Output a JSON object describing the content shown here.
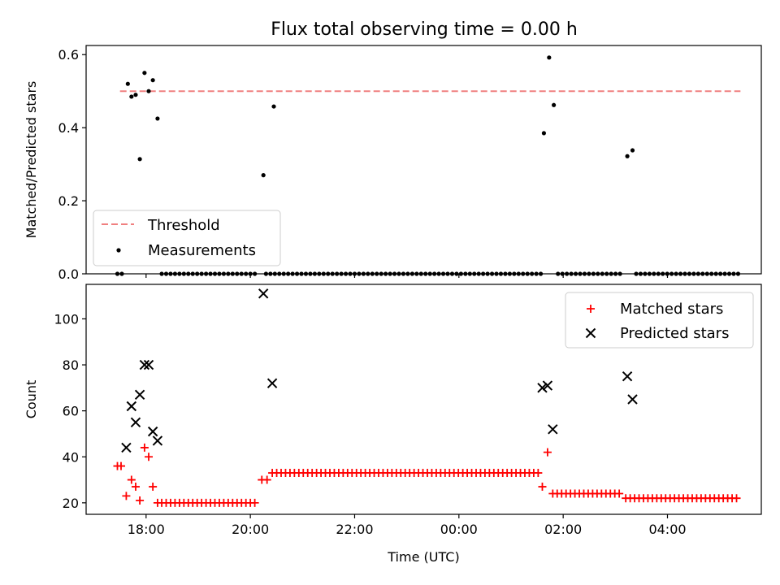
{
  "title": "Flux total observing time = 0.00 h",
  "chart_data": [
    {
      "type": "scatter",
      "ylabel": "Matched/Predicted stars",
      "xlim": [
        -1.15,
        11.8
      ],
      "ylim": [
        0,
        0.625
      ],
      "xticks": [
        0,
        2,
        4,
        6,
        8,
        10
      ],
      "yticks": [
        0.0,
        0.2,
        0.4,
        0.6
      ],
      "ytick_labels": [
        "0.0",
        "0.2",
        "0.4",
        "0.6"
      ],
      "legend": {
        "placement": "lower-left",
        "entries": [
          "Threshold",
          "Measurements"
        ]
      },
      "threshold": {
        "name": "Threshold",
        "y": 0.5,
        "x_range": [
          -0.5,
          11.4
        ],
        "color": "#f08080"
      },
      "series": [
        {
          "name": "Measurements",
          "color": "#000000",
          "points": [
            [
              -0.35,
              0.52
            ],
            [
              -0.28,
              0.485
            ],
            [
              -0.2,
              0.49
            ],
            [
              -0.12,
              0.314
            ],
            [
              -0.03,
              0.55
            ],
            [
              0.05,
              0.5
            ],
            [
              0.13,
              0.53
            ],
            [
              0.22,
              0.425
            ],
            [
              2.25,
              0.27
            ],
            [
              2.45,
              0.458
            ],
            [
              7.63,
              0.385
            ],
            [
              7.73,
              0.592
            ],
            [
              7.82,
              0.462
            ],
            [
              9.23,
              0.322
            ],
            [
              9.33,
              0.338
            ]
          ],
          "zero_intervals": [
            [
              -0.55,
              -0.4
            ],
            [
              0.3,
              2.15
            ],
            [
              2.3,
              7.58
            ],
            [
              7.9,
              9.15
            ],
            [
              9.4,
              11.4
            ]
          ]
        }
      ]
    },
    {
      "type": "scatter",
      "xlabel": "Time (UTC)",
      "ylabel": "Count",
      "xlim": [
        -1.15,
        11.8
      ],
      "ylim": [
        15,
        115
      ],
      "xticks": [
        0,
        2,
        4,
        6,
        8,
        10
      ],
      "xtick_labels": [
        "18:00",
        "20:00",
        "22:00",
        "00:00",
        "02:00",
        "04:00"
      ],
      "yticks": [
        20,
        40,
        60,
        80,
        100
      ],
      "legend": {
        "placement": "upper-right",
        "entries": [
          "Matched stars",
          "Predicted stars"
        ]
      },
      "series": [
        {
          "name": "Matched stars",
          "marker": "plus",
          "color": "#ff0000",
          "points": [
            [
              -0.55,
              36
            ],
            [
              -0.48,
              36
            ],
            [
              -0.38,
              23
            ],
            [
              -0.28,
              30
            ],
            [
              -0.2,
              27
            ],
            [
              -0.12,
              21
            ],
            [
              -0.03,
              44
            ],
            [
              0.05,
              40
            ],
            [
              0.13,
              27
            ],
            [
              0.22,
              20
            ],
            [
              2.22,
              30
            ],
            [
              2.32,
              30
            ],
            [
              7.6,
              27
            ],
            [
              7.7,
              42
            ]
          ],
          "runs": [
            {
              "x_range": [
                0.3,
                2.12
              ],
              "y": 20
            },
            {
              "x_range": [
                2.42,
                7.55
              ],
              "y": 33
            },
            {
              "x_range": [
                7.8,
                9.1
              ],
              "y": 24
            },
            {
              "x_range": [
                9.2,
                11.4
              ],
              "y": 22
            }
          ]
        },
        {
          "name": "Predicted stars",
          "marker": "x",
          "color": "#000000",
          "points": [
            [
              -0.38,
              44
            ],
            [
              -0.28,
              62
            ],
            [
              -0.2,
              55
            ],
            [
              -0.12,
              67
            ],
            [
              -0.03,
              80
            ],
            [
              0.05,
              80
            ],
            [
              0.13,
              51
            ],
            [
              0.22,
              47
            ],
            [
              2.25,
              111
            ],
            [
              2.42,
              72
            ],
            [
              7.6,
              70
            ],
            [
              7.7,
              71
            ],
            [
              7.8,
              52
            ],
            [
              9.23,
              75
            ],
            [
              9.33,
              65
            ]
          ]
        }
      ]
    }
  ]
}
